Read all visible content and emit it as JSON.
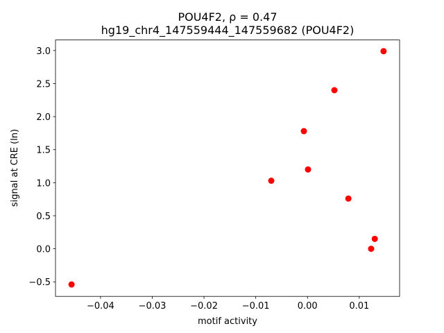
{
  "chart_data": {
    "type": "scatter",
    "title": "POU4F2, ρ = 0.47",
    "subtitle": "hg19_chr4_147559444_147559682 (POU4F2)",
    "x_label": "motif activity",
    "y_label": "signal at CRE (ln)",
    "color": "#ff0000",
    "x": [
      -0.0456,
      -0.007,
      -0.0007,
      0.0001,
      0.0052,
      0.0079,
      0.0123,
      0.013,
      0.0147
    ],
    "values": [
      -0.54,
      1.03,
      1.78,
      1.2,
      2.4,
      0.76,
      0.0,
      0.15,
      2.99
    ],
    "xlim": [
      -0.0487,
      0.0178
    ],
    "ylim": [
      -0.72,
      3.16
    ],
    "xticks": [
      {
        "value": -0.04,
        "label": "−0.04"
      },
      {
        "value": -0.03,
        "label": "−0.03"
      },
      {
        "value": -0.02,
        "label": "−0.02"
      },
      {
        "value": -0.01,
        "label": "−0.01"
      },
      {
        "value": 0,
        "label": "0.00"
      },
      0.01
    ],
    "yticks": [
      {
        "value": -0.5,
        "label": "−0.5"
      },
      {
        "value": 0,
        "label": "0.0"
      },
      0.5,
      {
        "value": 1,
        "label": "1.0"
      },
      1.5,
      {
        "value": 2,
        "label": "2.0"
      },
      2.5,
      {
        "value": 3,
        "label": "3.0"
      }
    ],
    "grid": false
  }
}
